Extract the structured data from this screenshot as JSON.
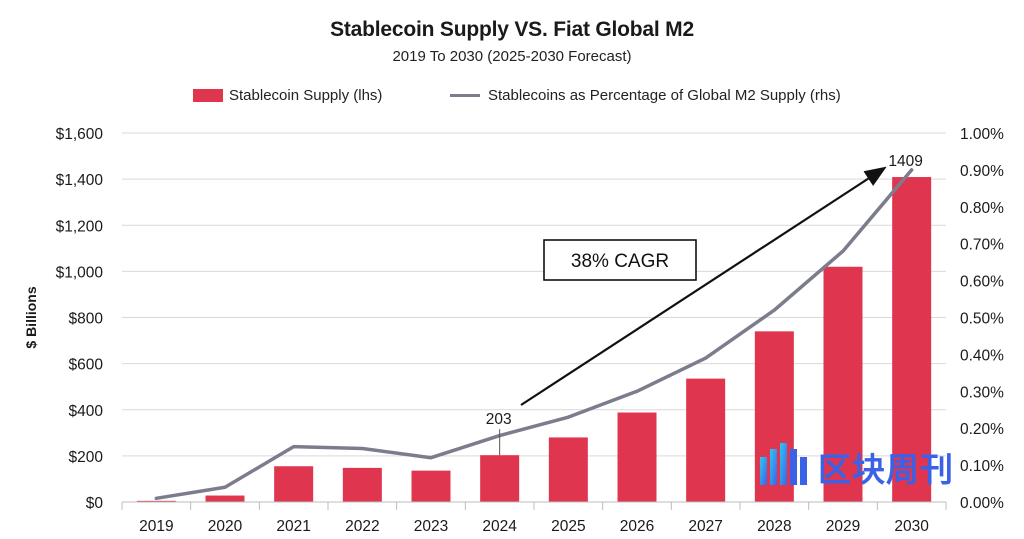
{
  "chart_data": {
    "type": "bar",
    "title": "Stablecoin Supply VS. Fiat Global M2",
    "subtitle": "2019 To 2030 (2025-2030 Forecast)",
    "categories": [
      "2019",
      "2020",
      "2021",
      "2022",
      "2023",
      "2024",
      "2025",
      "2026",
      "2027",
      "2028",
      "2029",
      "2030"
    ],
    "series": [
      {
        "name": "Stablecoin Supply (lhs)",
        "type": "bar",
        "axis": "left",
        "color": "#e0354f",
        "values": [
          5,
          28,
          155,
          148,
          136,
          203,
          280,
          388,
          535,
          740,
          1020,
          1409
        ]
      },
      {
        "name": "Stablecoins as Percentage of Global M2 Supply (rhs)",
        "type": "line",
        "axis": "right",
        "color": "#7b7d8c",
        "values": [
          0.0001,
          0.0004,
          0.0015,
          0.00145,
          0.0012,
          0.0018,
          0.0023,
          0.003,
          0.0039,
          0.0052,
          0.0068,
          0.009
        ]
      }
    ],
    "ylabel": "$ Billions",
    "ylim": [
      0,
      1600
    ],
    "yticks": [
      0,
      200,
      400,
      600,
      800,
      1000,
      1200,
      1400,
      1600
    ],
    "ytick_labels": [
      "$0",
      "$200",
      "$400",
      "$600",
      "$800",
      "$1,000",
      "$1,200",
      "$1,400",
      "$1,600"
    ],
    "y2lim": [
      0,
      0.01
    ],
    "y2ticks": [
      0,
      0.001,
      0.002,
      0.003,
      0.004,
      0.005,
      0.006,
      0.007,
      0.008,
      0.009,
      0.01
    ],
    "y2tick_labels": [
      "0.00%",
      "0.10%",
      "0.20%",
      "0.30%",
      "0.40%",
      "0.50%",
      "0.60%",
      "0.70%",
      "0.80%",
      "0.90%",
      "1.00%"
    ],
    "grid": true,
    "annotations": {
      "label_2024": "203",
      "label_2030": "1409",
      "cagr_text": "38% CAGR"
    },
    "legend_position": "top"
  },
  "watermark": {
    "text": "区块周刊",
    "color": "#3b62e6"
  }
}
